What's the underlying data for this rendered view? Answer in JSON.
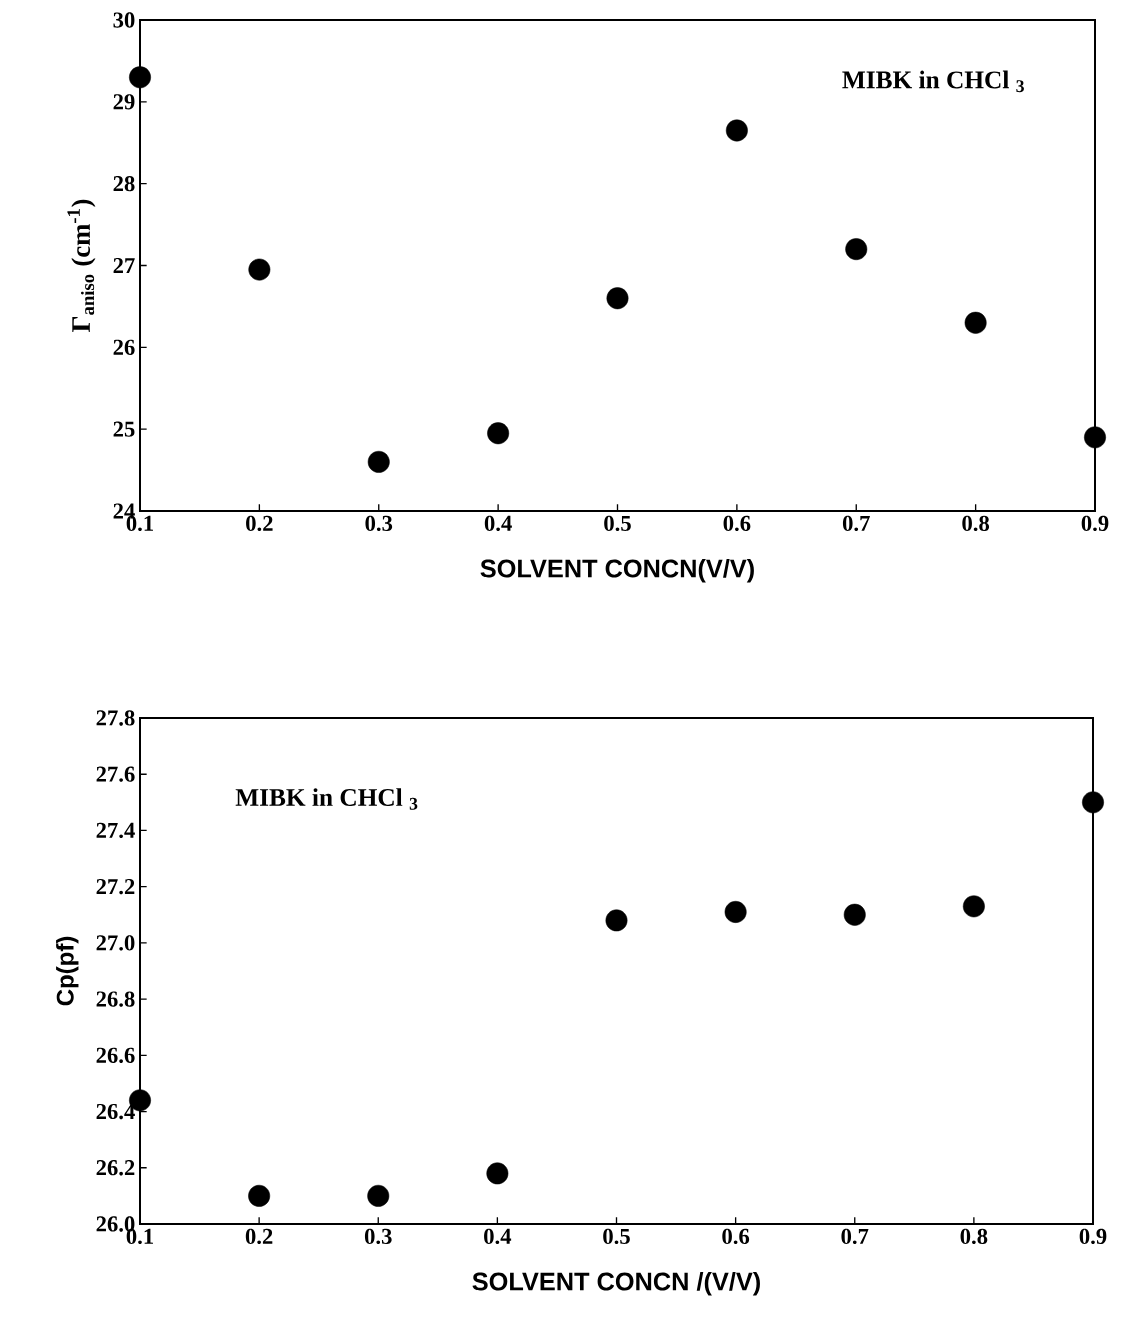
{
  "chart_data": [
    {
      "type": "scatter",
      "xlabel": "SOLVENT CONCN(V/V)",
      "ylabel": "Γ$_{aniso}$ (cm$^{-1}$)",
      "annotations": [
        "MIBK in CHCl $_{3}$"
      ],
      "x": [
        0.1,
        0.2,
        0.3,
        0.4,
        0.5,
        0.6,
        0.7,
        0.8,
        0.9
      ],
      "series": [
        {
          "color": "#000000",
          "values": [
            29.3,
            26.95,
            24.6,
            24.95,
            26.6,
            28.65,
            27.2,
            26.3,
            24.9
          ]
        }
      ],
      "xlim": [
        0.1,
        0.9
      ],
      "ylim": [
        24,
        30
      ],
      "xticks": [
        {
          "value": 0.1,
          "label": "0.1"
        },
        {
          "value": 0.2,
          "label": "0.2"
        },
        {
          "value": 0.3,
          "label": "0.3"
        },
        {
          "value": 0.4,
          "label": "0.4"
        },
        {
          "value": 0.5,
          "label": "0.5"
        },
        {
          "value": 0.6,
          "label": "0.6"
        },
        {
          "value": 0.7,
          "label": "0.7"
        },
        {
          "value": 0.8,
          "label": "0.8"
        },
        {
          "value": 0.9,
          "label": "0.9"
        }
      ],
      "yticks": [
        24,
        25,
        26,
        27,
        28,
        29,
        30
      ],
      "marker": "circle"
    },
    {
      "type": "scatter",
      "xlabel": "SOLVENT CONCN /(V/V)",
      "ylabel": "Cp(pf)",
      "annotations": [
        "MIBK in CHCl $_{3}$"
      ],
      "x": [
        0.1,
        0.2,
        0.3,
        0.4,
        0.5,
        0.6,
        0.7,
        0.8,
        0.9
      ],
      "series": [
        {
          "color": "#000000",
          "values": [
            26.44,
            26.1,
            26.1,
            26.18,
            27.08,
            27.11,
            27.1,
            27.13,
            27.5
          ]
        }
      ],
      "xlim": [
        0.1,
        0.9
      ],
      "ylim": [
        26.0,
        27.8
      ],
      "xticks": [
        {
          "value": 0.1,
          "label": "0.1"
        },
        {
          "value": 0.2,
          "label": "0.2"
        },
        {
          "value": 0.3,
          "label": "0.3"
        },
        {
          "value": 0.4,
          "label": "0.4"
        },
        {
          "value": 0.5,
          "label": "0.5"
        },
        {
          "value": 0.6,
          "label": "0.6"
        },
        {
          "value": 0.7,
          "label": "0.7"
        },
        {
          "value": 0.8,
          "label": "0.8"
        },
        {
          "value": 0.9,
          "label": "0.9"
        }
      ],
      "yticks": [
        {
          "value": 26.0,
          "label": "26.0"
        },
        {
          "value": 26.2,
          "label": "26.2"
        },
        {
          "value": 26.4,
          "label": "26.4"
        },
        {
          "value": 26.6,
          "label": "26.6"
        },
        {
          "value": 26.8,
          "label": "26.8"
        },
        {
          "value": 27.0,
          "label": "27.0"
        },
        {
          "value": 27.2,
          "label": "27.2"
        },
        {
          "value": 27.4,
          "label": "27.4"
        },
        {
          "value": 27.6,
          "label": "27.6"
        },
        {
          "value": 27.8,
          "label": "27.8"
        }
      ],
      "marker": "circle"
    }
  ]
}
